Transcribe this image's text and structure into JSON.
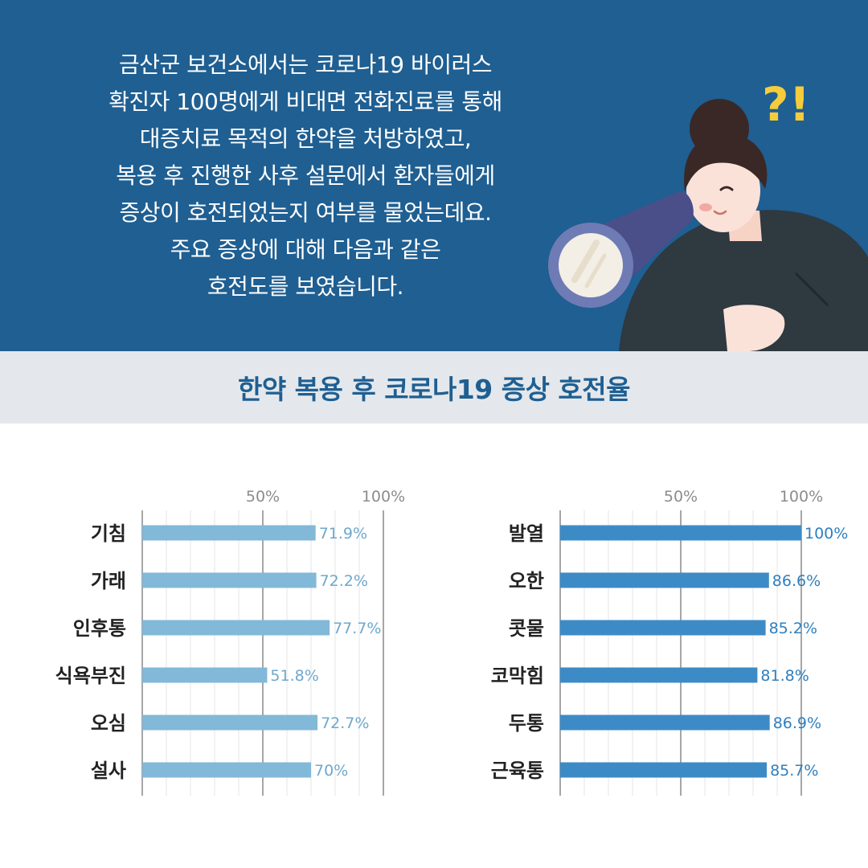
{
  "intro": {
    "lines": [
      "금산군 보건소에서는 코로나19 바이러스",
      "확진자 100명에게 비대면 전화진료를 통해",
      "대증치료 목적의 한약을 처방하였고,",
      "복용 후 진행한 사후 설문에서 환자들에게",
      "증상이 호전되었는지 여부를 물었는데요.",
      "주요 증상에 대해 다음과 같은",
      "호전도를 보였습니다."
    ]
  },
  "illustration": {
    "badge": "?!",
    "icon": "woman-with-telescope"
  },
  "section_title": "한약 복용 후 코로나19 증상 호전율",
  "colors": {
    "header_bg": "#1f5f92",
    "band_bg": "#e4e8ec",
    "left_bar": "#82b8d8",
    "left_label": "#6ea8cd",
    "right_bar": "#3d8bc6",
    "right_label": "#2f7fbe"
  },
  "chart_data": [
    {
      "type": "bar",
      "orientation": "horizontal",
      "categories": [
        "기침",
        "가래",
        "인후통",
        "식욕부진",
        "오심",
        "설사"
      ],
      "values": [
        71.9,
        72.2,
        77.7,
        51.8,
        72.7,
        70
      ],
      "value_labels": [
        "71.9%",
        "72.2%",
        "77.7%",
        "51.8%",
        "72.7%",
        "70%"
      ],
      "ticks": [
        "50%",
        "100%"
      ],
      "xlim": [
        0,
        100
      ],
      "grid": true
    },
    {
      "type": "bar",
      "orientation": "horizontal",
      "categories": [
        "발열",
        "오한",
        "콧물",
        "코막힘",
        "두통",
        "근육통"
      ],
      "values": [
        100,
        86.6,
        85.2,
        81.8,
        86.9,
        85.7
      ],
      "value_labels": [
        "100%",
        "86.6%",
        "85.2%",
        "81.8%",
        "86.9%",
        "85.7%"
      ],
      "ticks": [
        "50%",
        "100%"
      ],
      "xlim": [
        0,
        100
      ],
      "grid": true
    }
  ]
}
